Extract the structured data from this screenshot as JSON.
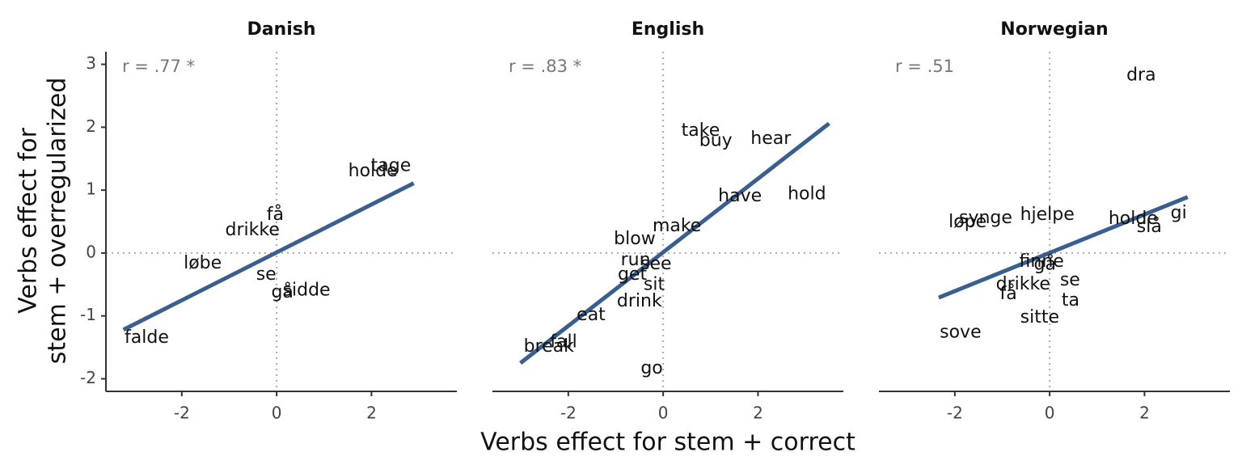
{
  "xlabel": "Verbs effect for stem + correct",
  "ylabel": [
    "Verbs effect for",
    "stem + overregularized"
  ],
  "chart_data": [
    {
      "type": "text-scatter",
      "title": "Danish",
      "annotation": "r = .77 *",
      "labels": [
        "falde",
        "løbe",
        "drikke",
        "få",
        "se",
        "gå",
        "sidde",
        "holde",
        "tage"
      ],
      "x": [
        -2.74,
        -1.56,
        -0.51,
        -0.03,
        -0.22,
        0.12,
        0.63,
        2.03,
        2.41
      ],
      "values": [
        -1.35,
        -0.17,
        0.36,
        0.6,
        -0.35,
        -0.63,
        -0.6,
        1.3,
        1.38
      ],
      "fit": {
        "x": [
          -3.23,
          2.89
        ],
        "y": [
          -1.22,
          1.11
        ]
      },
      "color": "#3a5f8f",
      "xlim": [
        -3.6,
        3.8
      ],
      "ylim": [
        -2.2,
        3.2
      ],
      "xticks": [
        -2,
        0,
        2
      ],
      "yticks": [
        -2,
        -1,
        0,
        1,
        2,
        3
      ]
    },
    {
      "type": "text-scatter",
      "title": "English",
      "annotation": "r = .83 *",
      "labels": [
        "take",
        "buy",
        "hear",
        "have",
        "hold",
        "make",
        "blow",
        "run",
        "see",
        "get",
        "sit",
        "drink",
        "eat",
        "fall",
        "break",
        "go"
      ],
      "x": [
        0.79,
        1.11,
        2.27,
        1.62,
        3.03,
        0.29,
        -0.6,
        -0.58,
        -0.15,
        -0.65,
        -0.19,
        -0.5,
        -1.52,
        -2.1,
        -2.41,
        -0.24
      ],
      "values": [
        1.94,
        1.78,
        1.81,
        0.9,
        0.93,
        0.42,
        0.22,
        -0.12,
        -0.18,
        -0.35,
        -0.51,
        -0.77,
        -0.99,
        -1.42,
        -1.49,
        -1.84
      ],
      "fit": {
        "x": [
          -3.01,
          3.5
        ],
        "y": [
          -1.75,
          2.06
        ]
      },
      "color": "#3a5f8f",
      "xlim": [
        -3.6,
        3.8
      ],
      "ylim": [
        -2.2,
        3.2
      ],
      "xticks": [
        -2,
        0,
        2
      ]
    },
    {
      "type": "text-scatter",
      "title": "Norwegian",
      "annotation": "r = .51",
      "labels": [
        "dra",
        "gi",
        "holde",
        "slå",
        "synge",
        "løpe",
        "hjelpe",
        "finne",
        "gå",
        "drikke",
        "se",
        "få",
        "ta",
        "sitte",
        "sove"
      ],
      "x": [
        1.93,
        2.72,
        1.76,
        2.1,
        -1.35,
        -1.73,
        -0.05,
        -0.17,
        -0.1,
        -0.56,
        0.43,
        -0.87,
        0.44,
        -0.21,
        -1.88
      ],
      "values": [
        2.82,
        0.63,
        0.54,
        0.41,
        0.55,
        0.49,
        0.6,
        -0.14,
        -0.19,
        -0.5,
        -0.44,
        -0.66,
        -0.76,
        -1.03,
        -1.27
      ],
      "fit": {
        "x": [
          -2.34,
          2.91
        ],
        "y": [
          -0.71,
          0.89
        ]
      },
      "color": "#3a5f8f",
      "xlim": [
        -3.6,
        3.8
      ],
      "ylim": [
        -2.2,
        3.2
      ],
      "xticks": [
        -2,
        0,
        2
      ]
    }
  ]
}
